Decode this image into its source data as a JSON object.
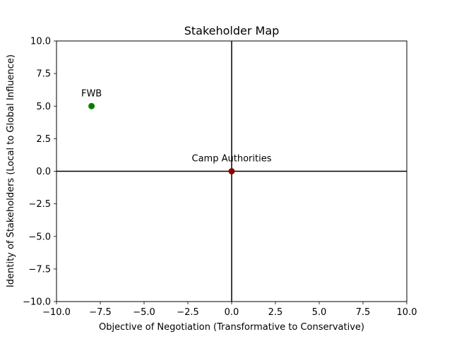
{
  "chart_data": {
    "type": "scatter",
    "title": "Stakeholder Map",
    "xlabel": "Objective of Negotiation (Transformative to Conservative)",
    "ylabel": "Identity of Stakeholders (Local to Global Influence)",
    "xlim": [
      -10,
      10
    ],
    "ylim": [
      -10,
      10
    ],
    "xticks": [
      "−10.0",
      "−7.5",
      "−5.0",
      "−2.5",
      "0.0",
      "2.5",
      "5.0",
      "7.5",
      "10.0"
    ],
    "xtick_values": [
      -10,
      -7.5,
      -5,
      -2.5,
      0,
      2.5,
      5,
      7.5,
      10
    ],
    "yticks": [
      "−10.0",
      "−7.5",
      "−5.0",
      "−2.5",
      "0.0",
      "2.5",
      "5.0",
      "7.5",
      "10.0"
    ],
    "ytick_values": [
      -10,
      -7.5,
      -5,
      -2.5,
      0,
      2.5,
      5,
      7.5,
      10
    ],
    "grid": false,
    "reference_lines": {
      "x": 0,
      "y": 0,
      "color": "#000000"
    },
    "points": [
      {
        "label": "FWB",
        "x": -8,
        "y": 5,
        "color": "#008000"
      },
      {
        "label": "Camp Authorities",
        "x": 0,
        "y": 0,
        "color": "#8b0000"
      }
    ]
  }
}
